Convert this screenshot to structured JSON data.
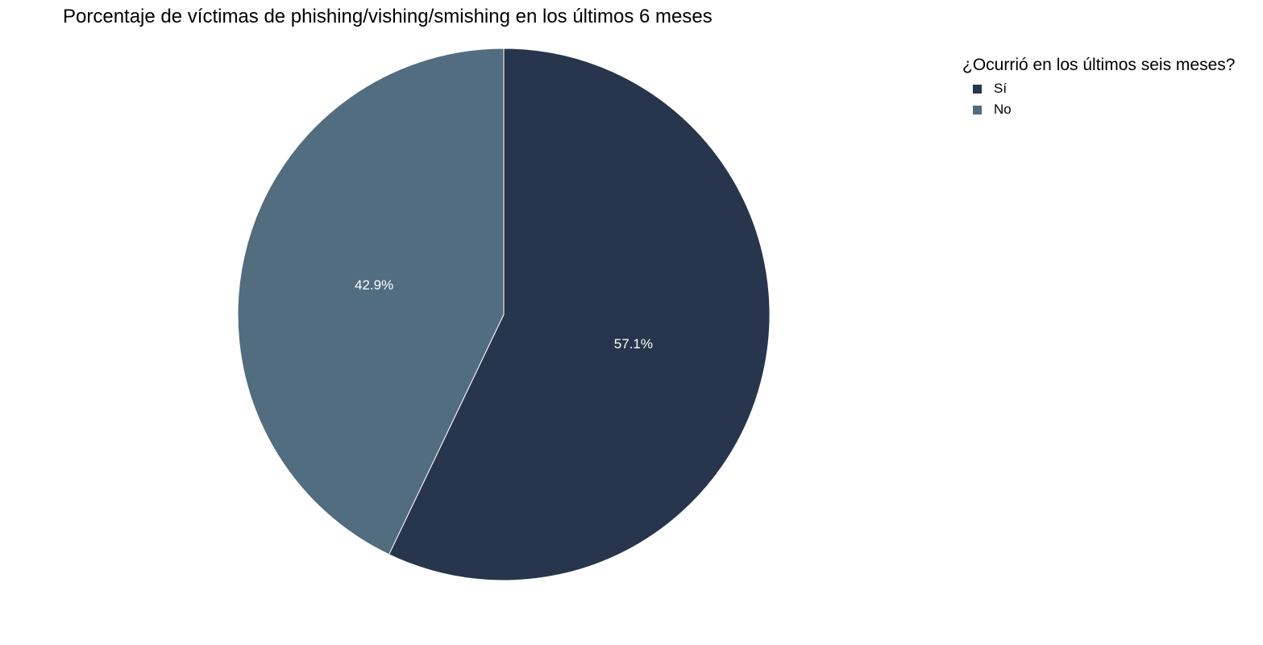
{
  "chart_data": {
    "type": "pie",
    "title": "Porcentaje de víctimas de phishing/vishing/smishing en los últimos 6 meses",
    "legend_title": "¿Ocurrió en los últimos seis meses?",
    "legend_position": "top-right",
    "slices": [
      {
        "name": "Sí",
        "value": 57.1,
        "label": "57.1%",
        "color": "#27364d"
      },
      {
        "name": "No",
        "value": 42.9,
        "label": "42.9%",
        "color": "#526c80"
      }
    ]
  }
}
